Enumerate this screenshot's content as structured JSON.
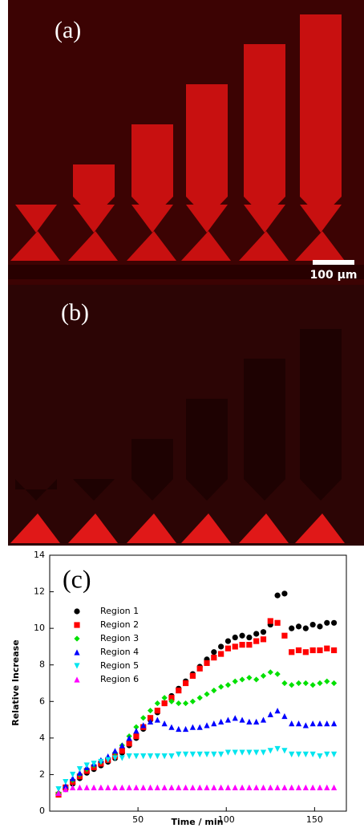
{
  "images": [
    {
      "label": "(a)",
      "scale_bar": "100 µm"
    },
    {
      "label": "(b)"
    }
  ],
  "chart_data": {
    "type": "scatter",
    "annotation": "(c)",
    "x_label": "Time / min",
    "y_label": "Relative Increase",
    "xlim": [
      0,
      168
    ],
    "ylim": [
      0,
      14
    ],
    "xticks": [
      50,
      100,
      150
    ],
    "yticks": [
      0,
      2,
      4,
      6,
      8,
      10,
      12,
      14
    ],
    "x": [
      5,
      9,
      13,
      17,
      21,
      25,
      29,
      33,
      37,
      41,
      45,
      49,
      53,
      57,
      61,
      65,
      69,
      73,
      77,
      81,
      85,
      89,
      93,
      97,
      101,
      105,
      109,
      113,
      117,
      121,
      125,
      129,
      133,
      137,
      141,
      145,
      149,
      153,
      157,
      161
    ],
    "series": [
      {
        "name": "Region 1",
        "color": "#000000",
        "marker": "circle",
        "values": [
          0.9,
          1.2,
          1.5,
          1.8,
          2.1,
          2.3,
          2.5,
          2.7,
          2.9,
          3.2,
          3.6,
          4.0,
          4.5,
          5.0,
          5.4,
          5.9,
          6.3,
          6.7,
          7.1,
          7.5,
          7.9,
          8.3,
          8.7,
          9.0,
          9.3,
          9.5,
          9.6,
          9.5,
          9.7,
          9.8,
          10.2,
          11.8,
          11.9,
          10.0,
          10.1,
          10.0,
          10.2,
          10.1,
          10.3,
          10.3
        ]
      },
      {
        "name": "Region 2",
        "color": "#ff0000",
        "marker": "square",
        "values": [
          0.9,
          1.3,
          1.6,
          1.9,
          2.2,
          2.4,
          2.6,
          2.8,
          3.0,
          3.3,
          3.7,
          4.1,
          4.6,
          5.1,
          5.5,
          5.9,
          6.2,
          6.6,
          7.0,
          7.4,
          7.8,
          8.1,
          8.4,
          8.6,
          8.9,
          9.0,
          9.1,
          9.1,
          9.3,
          9.4,
          10.4,
          10.3,
          9.6,
          8.7,
          8.8,
          8.7,
          8.8,
          8.8,
          8.9,
          8.8
        ]
      },
      {
        "name": "Region 3",
        "color": "#00e000",
        "marker": "diamond",
        "values": [
          1.0,
          1.3,
          1.7,
          2.0,
          2.3,
          2.5,
          2.7,
          2.9,
          3.2,
          3.6,
          4.1,
          4.6,
          5.1,
          5.5,
          5.9,
          6.2,
          6.0,
          5.9,
          5.9,
          6.0,
          6.2,
          6.4,
          6.6,
          6.8,
          6.9,
          7.1,
          7.2,
          7.3,
          7.2,
          7.4,
          7.6,
          7.5,
          7.0,
          6.9,
          7.0,
          7.0,
          6.9,
          7.0,
          7.1,
          7.0
        ]
      },
      {
        "name": "Region 4",
        "color": "#0000ff",
        "marker": "triangle-up",
        "values": [
          1.0,
          1.4,
          1.8,
          2.1,
          2.4,
          2.6,
          2.8,
          3.0,
          3.3,
          3.6,
          4.0,
          4.4,
          4.7,
          4.9,
          5.0,
          4.8,
          4.6,
          4.5,
          4.5,
          4.6,
          4.6,
          4.7,
          4.8,
          4.9,
          5.0,
          5.1,
          5.0,
          4.9,
          4.9,
          5.0,
          5.3,
          5.5,
          5.2,
          4.8,
          4.8,
          4.7,
          4.8,
          4.8,
          4.8,
          4.8
        ]
      },
      {
        "name": "Region 5",
        "color": "#00e5ee",
        "marker": "triangle-down",
        "values": [
          1.2,
          1.6,
          2.0,
          2.3,
          2.5,
          2.6,
          2.7,
          2.8,
          2.9,
          2.9,
          3.0,
          3.0,
          3.0,
          3.0,
          3.0,
          3.0,
          3.0,
          3.1,
          3.1,
          3.1,
          3.1,
          3.1,
          3.1,
          3.1,
          3.2,
          3.2,
          3.2,
          3.2,
          3.2,
          3.2,
          3.3,
          3.4,
          3.3,
          3.1,
          3.1,
          3.1,
          3.1,
          3.0,
          3.1,
          3.1
        ]
      },
      {
        "name": "Region 6",
        "color": "#ff00ff",
        "marker": "triangle-up",
        "values": [
          1.0,
          1.2,
          1.3,
          1.3,
          1.3,
          1.3,
          1.3,
          1.3,
          1.3,
          1.3,
          1.3,
          1.3,
          1.3,
          1.3,
          1.3,
          1.3,
          1.3,
          1.3,
          1.3,
          1.3,
          1.3,
          1.3,
          1.3,
          1.3,
          1.3,
          1.3,
          1.3,
          1.3,
          1.3,
          1.3,
          1.3,
          1.3,
          1.3,
          1.3,
          1.3,
          1.3,
          1.3,
          1.3,
          1.3,
          1.3
        ]
      }
    ]
  }
}
